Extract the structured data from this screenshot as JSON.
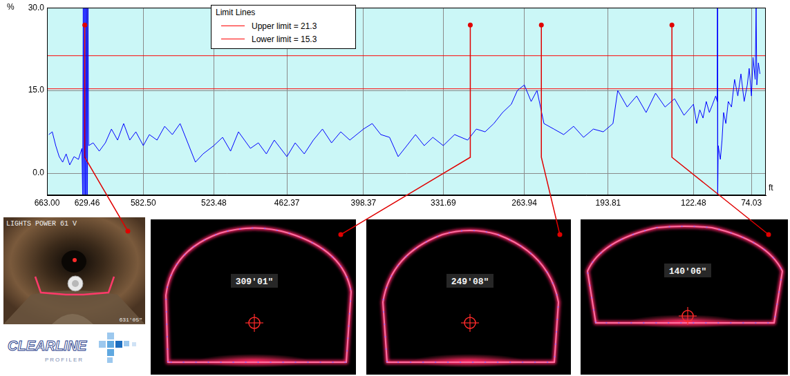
{
  "chart_data": {
    "type": "line",
    "x_label": "ft",
    "y_label": "%",
    "color": "#0000ff",
    "x": [
      661.5,
      658.6,
      655.7,
      652.8,
      649.9,
      647.0,
      644.0,
      640.4,
      636.7,
      633.8,
      633.2,
      632.7,
      632.2,
      631.7,
      631.2,
      630.7,
      630.2,
      629.7,
      629.2,
      628.7,
      628.2,
      624.4,
      619.3,
      614.2,
      609.1,
      604.0,
      598.9,
      593.8,
      588.7,
      582.5,
      577.4,
      571.0,
      564.6,
      558.2,
      551.7,
      545.3,
      538.9,
      532.5,
      523.5,
      516.2,
      509.5,
      502.9,
      492.9,
      486.3,
      479.6,
      473.0,
      462.4,
      455.5,
      447.9,
      440.3,
      432.7,
      425.1,
      417.4,
      409.8,
      398.4,
      391.1,
      383.9,
      376.6,
      369.4,
      362.1,
      354.9,
      347.6,
      340.4,
      331.7,
      322.2,
      311.3,
      304.0,
      296.7,
      289.4,
      282.1,
      274.8,
      269.7,
      263.9,
      258.2,
      253.3,
      247.5,
      239.2,
      231.0,
      222.7,
      214.4,
      206.2,
      197.9,
      189.8,
      185.8,
      177.9,
      170.0,
      162.1,
      154.2,
      146.2,
      138.3,
      130.4,
      122.5,
      119.8,
      117.2,
      114.5,
      111.8,
      109.2,
      106.5,
      103.9,
      102.6,
      102.4,
      102.2,
      101.8,
      100.0,
      98.6,
      97.3,
      95.4,
      93.4,
      90.7,
      88.1,
      85.4,
      82.8,
      80.1,
      77.5,
      75.9,
      74.0,
      72.7,
      70.9,
      70.1,
      69.5,
      68.2,
      66.9
    ],
    "values": [
      7,
      7.5,
      5,
      3,
      2,
      3.5,
      1.5,
      3,
      2.5,
      4.5,
      -4,
      30,
      -4,
      30,
      -4,
      30,
      -4,
      30,
      -4,
      30,
      5,
      5.5,
      4,
      5.5,
      8,
      6,
      9,
      6,
      7.5,
      5,
      7,
      6,
      8.5,
      7,
      9,
      5.5,
      2,
      3.5,
      5,
      6.5,
      4,
      7.5,
      4.5,
      5.5,
      3.5,
      6,
      3,
      5.5,
      3.5,
      6,
      8,
      5.5,
      7.5,
      6,
      8,
      9,
      7,
      6.5,
      3,
      5,
      7,
      5,
      6.5,
      5,
      7,
      6,
      8,
      7.5,
      9,
      11,
      12.5,
      15,
      16,
      13,
      15,
      9,
      8,
      7,
      8.5,
      6.5,
      8,
      7.5,
      9,
      15,
      12,
      14,
      11,
      14.5,
      12,
      13.5,
      10.5,
      12.5,
      9,
      11.5,
      10,
      13,
      11,
      12.5,
      14,
      13,
      30,
      -4,
      5,
      2.5,
      6,
      11,
      9,
      13,
      12,
      17,
      14,
      18,
      13,
      16,
      19,
      14,
      21,
      17,
      30,
      16,
      20,
      18
    ],
    "xlim": [
      663,
      62
    ],
    "xticks": [
      {
        "value": 663,
        "label": "663.00"
      },
      629.46,
      {
        "value": 582.5,
        "label": "582.50"
      },
      523.48,
      462.37,
      398.37,
      331.69,
      263.94,
      193.81,
      122.48,
      74.03
    ],
    "ylim": [
      -4,
      30
    ],
    "yticks": [
      {
        "value": 0,
        "label": "0.0"
      },
      {
        "value": 15,
        "label": "15.0"
      },
      {
        "value": 30,
        "label": "30.0"
      }
    ],
    "grid": true,
    "legend": "top",
    "legend_title": "Limit Lines",
    "limits": [
      {
        "name": "Upper limit = 21.3",
        "value": 21.3,
        "color": "#ff0000"
      },
      {
        "name": "Lower limit = 15.3",
        "value": 15.3,
        "color": "#ff0000"
      }
    ],
    "markers": [
      {
        "x": 631.42,
        "label": "631'05\""
      },
      {
        "x": 309.08,
        "label": "309'01\""
      },
      {
        "x": 249.67,
        "label": "249'08\""
      },
      {
        "x": 140.5,
        "label": "140'06\""
      }
    ]
  },
  "camera_image": {
    "overlay_text": "LIGHTS POWER 61 V"
  },
  "logo": {
    "name": "CLEARLINE",
    "subtitle": "PROFILER"
  }
}
